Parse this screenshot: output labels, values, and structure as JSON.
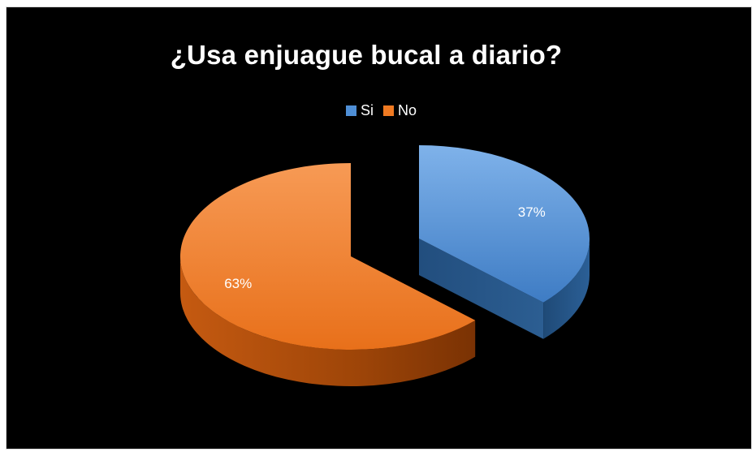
{
  "chart_data": {
    "type": "pie",
    "title": "¿Usa enjuague bucal a diario?",
    "legend_placement": "top",
    "categories": [
      "Si",
      "No"
    ],
    "values": [
      37,
      63
    ],
    "data_labels": [
      "37%",
      "63%"
    ],
    "colors": [
      "#4f8fd6",
      "#f07a22"
    ],
    "style": "3d-exploded"
  }
}
